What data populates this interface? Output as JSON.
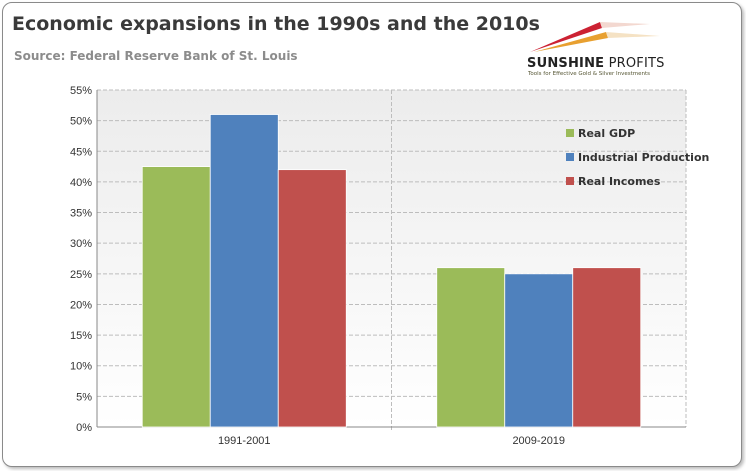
{
  "chart_data": {
    "type": "bar",
    "title": "Economic expansions in the 1990s and the 2010s",
    "subtitle": "Source: Federal Reserve Bank of St. Louis",
    "categories": [
      "1991-2001",
      "2009-2019"
    ],
    "series": [
      {
        "name": "Real GDP",
        "values": [
          42.5,
          26
        ],
        "color": "#9bbb59"
      },
      {
        "name": "Industrial Production",
        "values": [
          51,
          25
        ],
        "color": "#4f81bd"
      },
      {
        "name": "Real Incomes",
        "values": [
          42,
          26
        ],
        "color": "#c0504d"
      }
    ],
    "ylim": [
      0,
      55
    ],
    "yticks": [
      "0%",
      "5%",
      "10%",
      "15%",
      "20%",
      "25%",
      "30%",
      "35%",
      "40%",
      "45%",
      "50%",
      "55%"
    ],
    "grid": true,
    "legend_placement": "right"
  },
  "logo": {
    "name_bold": "SUNSHINE",
    "name_light": " PROFITS",
    "tagline": "Tools for Effective Gold & Silver Investments"
  }
}
